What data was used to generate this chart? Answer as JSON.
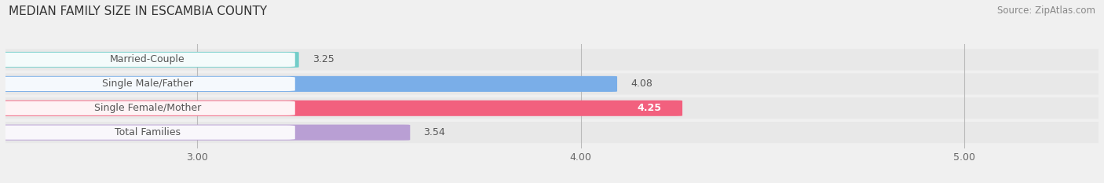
{
  "title": "MEDIAN FAMILY SIZE IN ESCAMBIA COUNTY",
  "source": "Source: ZipAtlas.com",
  "categories": [
    "Married-Couple",
    "Single Male/Father",
    "Single Female/Mother",
    "Total Families"
  ],
  "values": [
    3.25,
    4.08,
    4.25,
    3.54
  ],
  "bar_colors": [
    "#72cdc9",
    "#7aaee8",
    "#f2607e",
    "#b99fd4"
  ],
  "xlim": [
    2.5,
    5.35
  ],
  "xmin": 2.5,
  "xticks": [
    3.0,
    4.0,
    5.0
  ],
  "xtick_labels": [
    "3.00",
    "4.00",
    "5.00"
  ],
  "bar_height": 0.62,
  "figsize": [
    14.06,
    2.33
  ],
  "dpi": 100,
  "bg_color": "#f0f0f0",
  "pill_color": "#ffffff",
  "text_color": "#555555",
  "value_fontsize": 9,
  "label_fontsize": 9,
  "title_fontsize": 11,
  "source_fontsize": 8.5,
  "source_color": "#888888"
}
